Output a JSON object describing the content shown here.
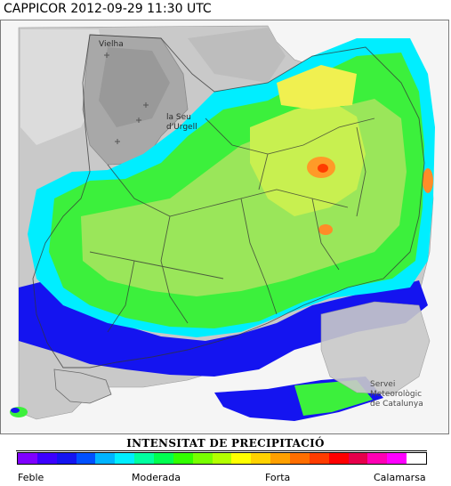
{
  "header": {
    "title": "CAPPICOR 2012-09-29 11:30 UTC"
  },
  "map": {
    "place_labels": [
      {
        "id": "vielha",
        "text": "Vielha"
      },
      {
        "id": "la-seu-line1",
        "text": "la Seu"
      },
      {
        "id": "la-seu-line2",
        "text": "d'Urgell"
      }
    ],
    "credit": {
      "line1": "Servei",
      "line2": "Meteorològic",
      "line3": "de Catalunya"
    }
  },
  "legend": {
    "title": "INTENSITAT DE PRECIPITACIÓ",
    "labels": {
      "low": "Feble",
      "moderate": "Moderada",
      "strong": "Forta",
      "hail": "Calamarsa"
    },
    "color_steps": [
      "#7f00ff",
      "#3c00ff",
      "#1414f0",
      "#0050ff",
      "#00b4ff",
      "#00eeff",
      "#00ffa0",
      "#00ff50",
      "#32ff00",
      "#78ff00",
      "#b4ff00",
      "#ffff00",
      "#ffd200",
      "#ffa000",
      "#ff6e00",
      "#ff3c00",
      "#ff0000",
      "#e6004b",
      "#ff00b4",
      "#ff00ff",
      "#ffffff"
    ]
  }
}
